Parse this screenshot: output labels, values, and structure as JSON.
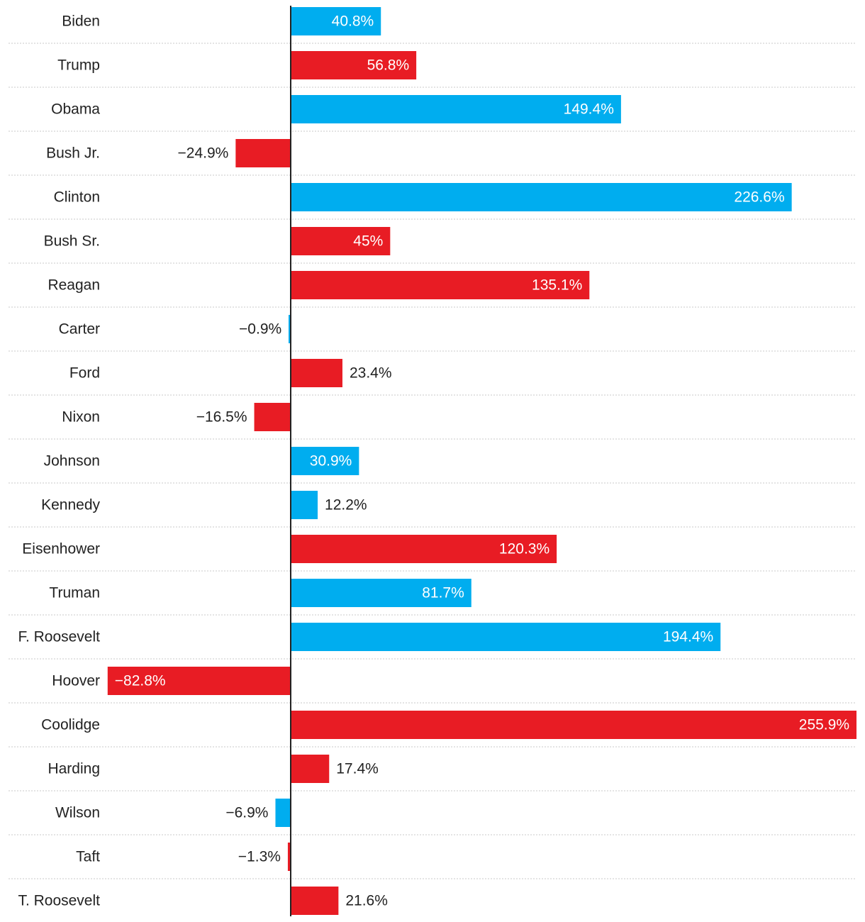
{
  "chart_data": {
    "type": "bar",
    "orientation": "horizontal",
    "title": "",
    "xlabel": "",
    "ylabel": "",
    "xlim": [
      -100,
      260
    ],
    "grid": false,
    "legend": "none",
    "colors": {
      "democrat": "#00adef",
      "republican": "#e81c24",
      "text_dark": "#222222",
      "text_light": "#ffffff",
      "separator": "#c8c8c8",
      "axis": "#222222"
    },
    "categories": [
      "Biden",
      "Trump",
      "Obama",
      "Bush Jr.",
      "Clinton",
      "Bush Sr.",
      "Reagan",
      "Carter",
      "Ford",
      "Nixon",
      "Johnson",
      "Kennedy",
      "Eisenhower",
      "Truman",
      "F. Roosevelt",
      "Hoover",
      "Coolidge",
      "Harding",
      "Wilson",
      "Taft",
      "T. Roosevelt"
    ],
    "values": [
      40.8,
      56.8,
      149.4,
      -24.9,
      226.6,
      45,
      135.1,
      -0.9,
      23.4,
      -16.5,
      30.9,
      12.2,
      120.3,
      81.7,
      194.4,
      -82.8,
      255.9,
      17.4,
      -6.9,
      -1.3,
      21.6
    ],
    "value_labels": [
      "40.8%",
      "56.8%",
      "149.4%",
      "−24.9%",
      "226.6%",
      "45%",
      "135.1%",
      "−0.9%",
      "23.4%",
      "−16.5%",
      "30.9%",
      "12.2%",
      "120.3%",
      "81.7%",
      "194.4%",
      "−82.8%",
      "255.9%",
      "17.4%",
      "−6.9%",
      "−1.3%",
      "21.6%"
    ],
    "party": [
      "democrat",
      "republican",
      "democrat",
      "republican",
      "democrat",
      "republican",
      "republican",
      "democrat",
      "republican",
      "republican",
      "democrat",
      "democrat",
      "republican",
      "democrat",
      "democrat",
      "republican",
      "republican",
      "republican",
      "democrat",
      "republican",
      "republican"
    ]
  }
}
